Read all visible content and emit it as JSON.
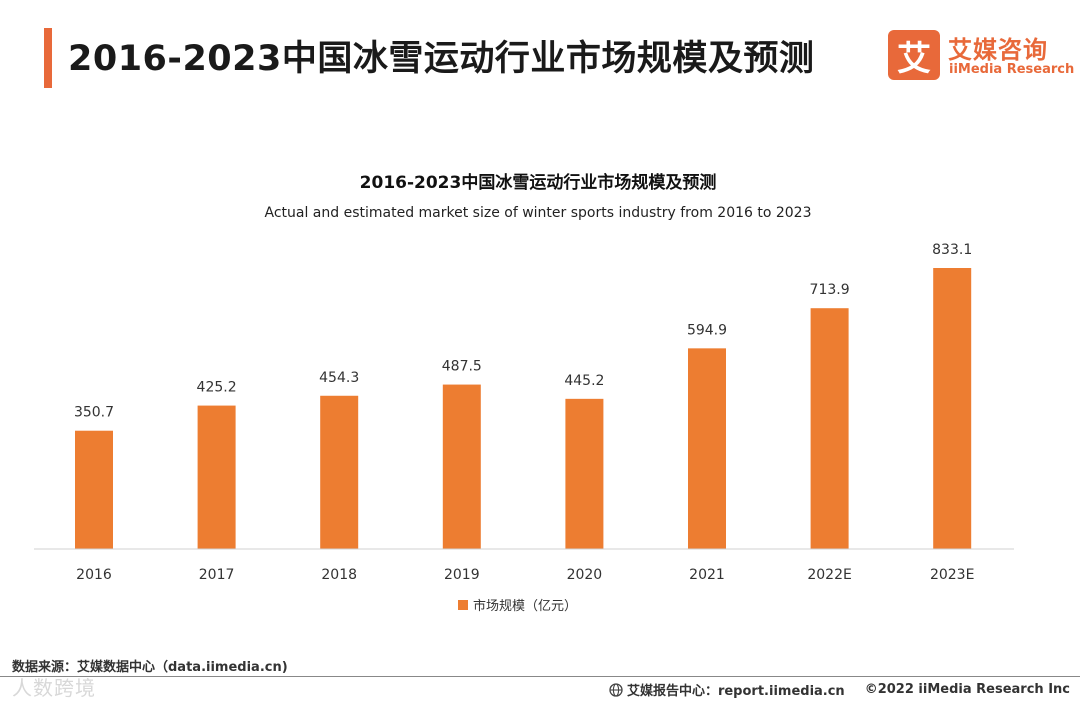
{
  "header": {
    "title": "2016-2023中国冰雪运动行业市场规模及预测"
  },
  "logo": {
    "mark": "艾",
    "name_cn": "艾媒咨询",
    "name_en": "iiMedia Research"
  },
  "colors": {
    "accent": "#e8693a",
    "bar": "#ed7d31"
  },
  "chart_data": {
    "type": "bar",
    "title": "2016-2023中国冰雪运动行业市场规模及预测",
    "subtitle": "Actual and estimated market size of winter sports industry from 2016 to 2023",
    "categories": [
      "2016",
      "2017",
      "2018",
      "2019",
      "2020",
      "2021",
      "2022E",
      "2023E"
    ],
    "series": [
      {
        "name": "市场规模（亿元）",
        "values": [
          350.7,
          425.2,
          454.3,
          487.5,
          445.2,
          594.9,
          713.9,
          833.1
        ]
      }
    ],
    "ylim": [
      0,
      900
    ],
    "grid": false,
    "legend": "bottom-center"
  },
  "footer": {
    "source": "数据来源：艾媒数据中心（data.iimedia.cn)",
    "watermark": "人数跨境",
    "report": "艾媒报告中心：report.iimedia.cn",
    "copyright": "©2022  iiMedia Research  Inc"
  }
}
